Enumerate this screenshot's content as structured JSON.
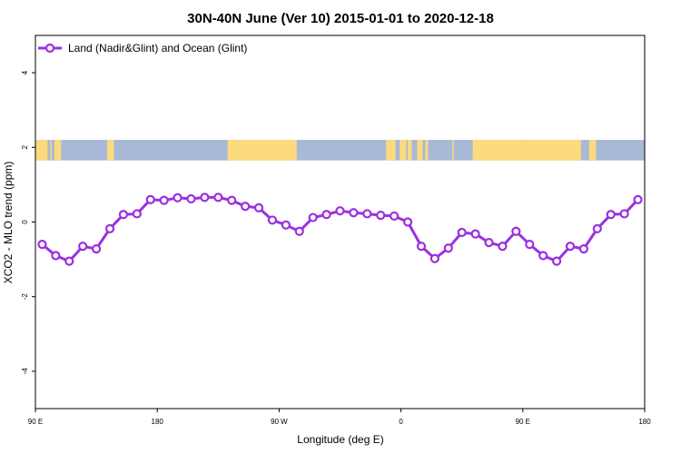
{
  "chart_data": {
    "type": "line",
    "title": "30N-40N June (Ver 10)   2015-01-01 to 2020-12-18",
    "xlabel": "Longitude (deg E)",
    "ylabel": "XCO2 - MLO trend (ppm)",
    "xlim": [
      90,
      540
    ],
    "ylim": [
      -5,
      5
    ],
    "x_ticks": [
      {
        "value": 90,
        "label": "90 E"
      },
      {
        "value": 180,
        "label": "180"
      },
      {
        "value": 270,
        "label": "90 W"
      },
      {
        "value": 360,
        "label": "0"
      },
      {
        "value": 450,
        "label": "90 E"
      },
      {
        "value": 540,
        "label": "180"
      }
    ],
    "y_ticks": [
      {
        "value": -4,
        "label": "-4"
      },
      {
        "value": -2,
        "label": "-2"
      },
      {
        "value": 0,
        "label": "0"
      },
      {
        "value": 2,
        "label": "2"
      },
      {
        "value": 4,
        "label": "4"
      }
    ],
    "legend_position": "top-left",
    "grid": false,
    "series": [
      {
        "name": "Land (Nadir&Glint) and Ocean (Glint)",
        "color": "#9B30E0",
        "marker": "open-circle",
        "x": [
          95,
          105,
          115,
          125,
          135,
          145,
          155,
          165,
          175,
          185,
          195,
          205,
          215,
          225,
          235,
          245,
          255,
          265,
          275,
          285,
          295,
          305,
          315,
          325,
          335,
          345,
          355,
          365,
          375,
          385,
          395,
          405,
          415,
          425,
          435,
          445,
          455,
          465,
          475,
          485,
          495,
          505,
          515,
          525,
          535
        ],
        "values": [
          -0.6,
          -0.9,
          -1.05,
          -0.65,
          -0.72,
          -0.18,
          0.2,
          0.22,
          0.6,
          0.58,
          0.65,
          0.62,
          0.66,
          0.66,
          0.58,
          0.42,
          0.38,
          0.05,
          -0.08,
          -0.25,
          0.12,
          0.2,
          0.3,
          0.25,
          0.22,
          0.18,
          0.16,
          0.0,
          -0.65,
          -0.98,
          -0.7,
          -0.28,
          -0.32,
          -0.55,
          -0.65,
          -0.25,
          -0.6,
          -0.9,
          -1.05,
          -0.65,
          -0.72,
          -0.18,
          0.2,
          0.22,
          0.6
        ]
      }
    ],
    "map_strip": {
      "y_range": [
        1.65,
        2.2
      ],
      "ocean_color": "#A7B9D6",
      "land_color": "#FBDB7D",
      "land_spans": [
        [
          90,
          99
        ],
        [
          101,
          102
        ],
        [
          104,
          109
        ],
        [
          143,
          144
        ],
        [
          144,
          148
        ],
        [
          232,
          240
        ],
        [
          240,
          256
        ],
        [
          256,
          283
        ],
        [
          280,
          282
        ],
        [
          349,
          356
        ],
        [
          359,
          364
        ],
        [
          365,
          368
        ],
        [
          372,
          376
        ],
        [
          378,
          380
        ],
        [
          398,
          399
        ],
        [
          413,
          415
        ],
        [
          415,
          450
        ],
        [
          450,
          476
        ],
        [
          476,
          493
        ],
        [
          499,
          504
        ]
      ]
    }
  }
}
